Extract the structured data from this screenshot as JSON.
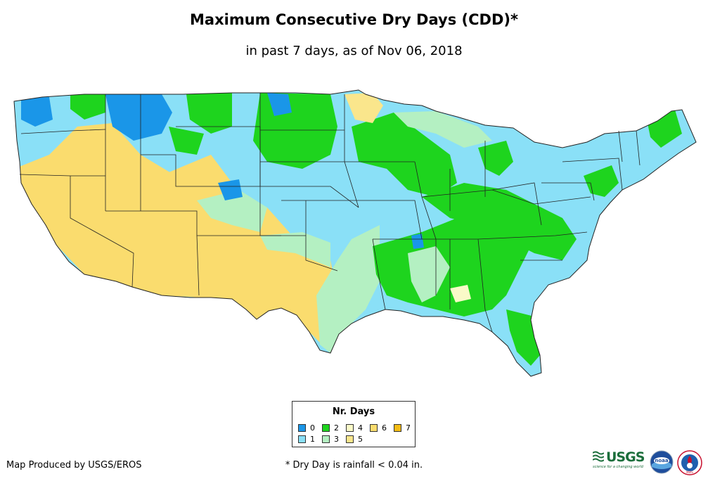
{
  "title": "Maximum Consecutive Dry Days (CDD)*",
  "subtitle": "in past 7 days, as of Nov 06, 2018",
  "legend": {
    "title": "Nr. Days",
    "items": [
      {
        "label": "0",
        "color": "#1a96e8"
      },
      {
        "label": "1",
        "color": "#8ae0f7"
      },
      {
        "label": "2",
        "color": "#1ed41e"
      },
      {
        "label": "3",
        "color": "#b4f0c2"
      },
      {
        "label": "4",
        "color": "#fafac8"
      },
      {
        "label": "5",
        "color": "#fae68c"
      },
      {
        "label": "6",
        "color": "#fadc6e"
      },
      {
        "label": "7",
        "color": "#f5bc14"
      }
    ]
  },
  "footer": {
    "credit": "Map Produced by USGS/EROS",
    "note": "* Dry Day is rainfall < 0.04 in."
  },
  "logos": {
    "usgs": "USGS",
    "usgs_tagline": "science for a changing world",
    "noaa": "noaa",
    "nws": "NWS"
  }
}
